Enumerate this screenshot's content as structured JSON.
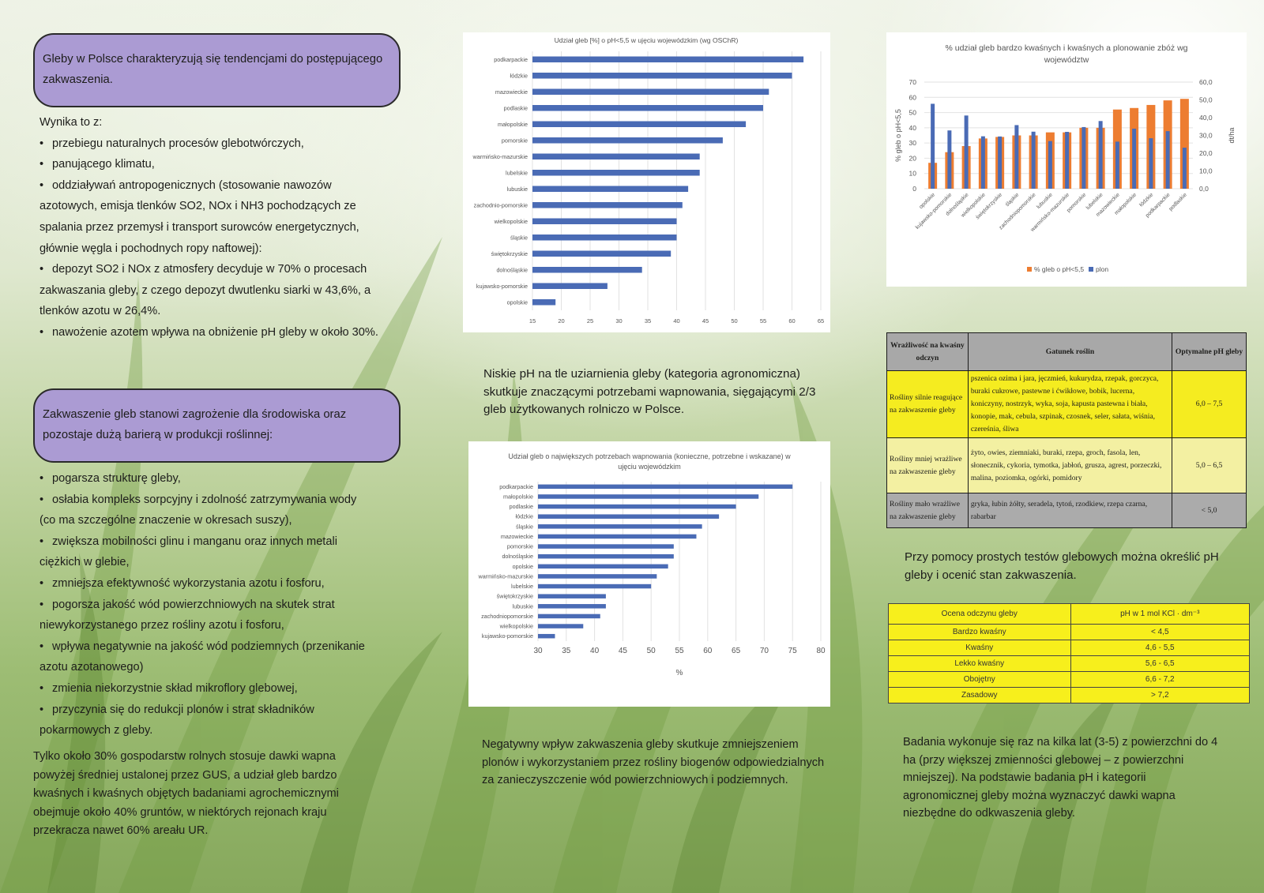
{
  "left": {
    "box1_text": "Gleby w Polsce charakteryzują się tendencjami do postępującego zakwaszenia.",
    "intro": "Wynika to z:",
    "causes": [
      "przebiegu naturalnych procesów glebotwórczych,",
      "panującego klimatu,",
      "oddziaływań antropogenicznych (stosowanie nawozów azotowych, emisja tlenków SO2, NOx i NH3 pochodzących ze spalania przez przemysł i transport surowców energetycznych, głównie węgla i pochodnych ropy naftowej):",
      "depozyt SO2 i NOx z atmosfery decyduje w 70% o procesach zakwaszania gleby, z czego depozyt dwutlenku siarki w 43,6%, a tlenków azotu w 26,4%.",
      "nawożenie azotem wpływa na obniżenie pH gleby w około 30%."
    ],
    "box2_text": "Zakwaszenie gleb stanowi zagrożenie dla środowiska oraz pozostaje dużą barierą w produkcji roślinnej:",
    "effects": [
      "pogarsza strukturę gleby,",
      "osłabia kompleks sorpcyjny i zdolność zatrzymywania wody (co ma szczególne znaczenie w okresach suszy),",
      "zwiększa mobilności glinu i manganu oraz innych metali ciężkich w glebie,",
      "zmniejsza efektywność wykorzystania azotu i fosforu,",
      "pogorsza jakość wód powierzchniowych na skutek strat niewykorzystanego przez rośliny azotu i fosforu,",
      "wpływa negatywnie na jakość wód podziemnych (przenikanie azotu azotanowego)",
      "zmienia niekorzystnie skład mikroflory glebowej,",
      "przyczynia się do redukcji plonów i strat składników pokarmowych z gleby."
    ],
    "closing": "Tylko około 30% gospodarstw rolnych stosuje dawki wapna powyżej średniej ustalonej przez GUS, a udział gleb bardzo kwaśnych i kwaśnych objętych badaniami agrochemicznymi obejmuje około 40% gruntów, w niektórych rejonach kraju przekracza nawet 60% areału UR."
  },
  "middle": {
    "text1": "Niskie pH na tle uziarnienia gleby (kategoria agronomiczna) skutkuje znaczącymi potrzebami wapnowania, sięgającymi 2/3 gleb użytkowanych rolniczo w Polsce.",
    "text2": "Negatywny wpływ zakwaszenia gleby skutkuje zmniejszeniem plonów i wykorzystaniem przez rośliny biogenów odpowiedzialnych za zanieczyszczenie wód powierzchniowych i podziemnych."
  },
  "right": {
    "sens_table": {
      "headers": [
        "Wrażliwość na kwaśny odczyn",
        "Gatunek roślin",
        "Optymalne pH gleby"
      ],
      "rows": [
        {
          "group": "Rośliny silnie reagujące na zakwaszenie gleby",
          "species": "pszenica ozima i jara, jęczmień, kukurydza, rzepak, gorczyca, buraki cukrowe, pastewne i ćwikłowe, bobik, lucerna, koniczyny, nostrzyk, wyka, soja, kapusta pastewna i biała, konopie, mak, cebula, szpinak, czosnek, seler, sałata, wiśnia, czereśnia, śliwa",
          "ph": "6,0 – 7,5",
          "color": "#f5ec20"
        },
        {
          "group": "Rośliny mniej wrażliwe na zakwaszenie gleby",
          "species": "żyto, owies, ziemniaki, buraki, rzepa, groch, fasola, len, słonecznik, cykoria, tymotka, jabłoń, grusza, agrest, porzeczki, malina, poziomka, ogórki, pomidory",
          "ph": "5,0 – 6,5",
          "color": "#f3f0a2"
        },
        {
          "group": "Rośliny mało wrażliwe na zakwaszenie gleby",
          "species": "gryka, łubin żółty, seradela, tytoń, rzodkiew, rzepa czarna, rabarbar",
          "ph": "< 5,0",
          "color": "#ababab"
        }
      ]
    },
    "text1": "Przy pomocy prostych testów glebowych można określić pH gleby i ocenić stan zakwaszenia.",
    "ph_table": {
      "header_left": "Ocena odczynu gleby",
      "header_right": "pH w 1 mol KCl · dm⁻³",
      "rows": [
        {
          "label": "Bardzo kwaśny",
          "value": "< 4,5"
        },
        {
          "label": "Kwaśny",
          "value": "4,6 - 5,5"
        },
        {
          "label": "Lekko kwaśny",
          "value": "5,6 - 6,5"
        },
        {
          "label": "Obojętny",
          "value": "6,6 - 7,2"
        },
        {
          "label": "Zasadowy",
          "value": "> 7,2"
        }
      ]
    },
    "text2": "Badania wykonuje się raz na kilka lat (3-5) z powierzchni do 4 ha (przy większej zmienności glebowej – z powierzchni mniejszej). Na podstawie badania pH i kategorii agronomicznej gleby można wyznaczyć dawki wapna niezbędne do odkwaszenia gleby."
  },
  "chart_data": [
    {
      "type": "bar",
      "orientation": "horizontal",
      "title": "Udział gleb [%] o pH<5,5 w ujęciu wojewódzkim (wg OSChR)",
      "categories": [
        "podkarpackie",
        "łódzkie",
        "mazowieckie",
        "podlaskie",
        "małopolskie",
        "pomorskie",
        "warmińsko-mazurskie",
        "lubelskie",
        "lubuskie",
        "zachodnio-pomorskie",
        "wielkopolskie",
        "śląskie",
        "świętokrzyskie",
        "dolnośląskie",
        "kujawsko-pomorskie",
        "opolskie"
      ],
      "values": [
        62,
        60,
        56,
        55,
        52,
        48,
        44,
        44,
        42,
        41,
        40,
        40,
        39,
        34,
        28,
        19
      ],
      "xlim": [
        15,
        65
      ],
      "xticks": [
        "15",
        "20",
        "25",
        "30",
        "35",
        "40",
        "45",
        "50",
        "55",
        "60",
        "65"
      ],
      "bar_color": "#4a6bb5",
      "grid": true
    },
    {
      "type": "bar",
      "orientation": "horizontal",
      "title": "Udział gleb o największych potrzebach wapnowania (konieczne, potrzebne i wskazane) w ujęciu wojewódzkim",
      "categories": [
        "podkarpackie",
        "małopolskie",
        "podlaskie",
        "łódzkie",
        "śląskie",
        "mazowieckie",
        "pomorskie",
        "dolnośląskie",
        "opolskie",
        "warmińsko-mazurskie",
        "lubelskie",
        "świętokrzyskie",
        "lubuskie",
        "zachodniopomorskie",
        "wielkopolskie",
        "kujawsko-pomorskie"
      ],
      "values": [
        75,
        69,
        65,
        62,
        59,
        58,
        54,
        54,
        53,
        51,
        50,
        42,
        42,
        41,
        38,
        33
      ],
      "xlim": [
        30,
        80
      ],
      "xticks": [
        "30",
        "35",
        "40",
        "45",
        "50",
        "55",
        "60",
        "65",
        "70",
        "75",
        "80"
      ],
      "xlabel": "%",
      "bar_color": "#4a6bb5",
      "grid": true
    },
    {
      "type": "bar",
      "title": "% udział gleb bardzo kwaśnych i kwaśnych a plonowanie zbóż wg województw",
      "categories": [
        "opolskie",
        "kujawsko-pomorskie",
        "dolnośląskie",
        "wielkopolskie",
        "świętokrzyskie",
        "śląskie",
        "zachodniopomorskie",
        "lubuskie",
        "warmińsko-mazurskie",
        "pomorskie",
        "lubelskie",
        "mazowieckie",
        "małopolskie",
        "łódzkie",
        "podkarpackie",
        "podlaskie"
      ],
      "series": [
        {
          "name": "% gleb o pH<5,5",
          "axis": "left",
          "color": "#ed7d31",
          "values": [
            17,
            24,
            28,
            33,
            34,
            35,
            35,
            37,
            37,
            40,
            40,
            52,
            53,
            55,
            58,
            59
          ]
        },
        {
          "name": "plon",
          "axis": "right",
          "color": "#4a6bb5",
          "values": [
            47.8,
            32.8,
            41.2,
            29.5,
            29.4,
            35.8,
            32.1,
            26.8,
            32.0,
            34.7,
            38.1,
            26.5,
            33.8,
            28.4,
            32.4,
            23.1
          ]
        }
      ],
      "ylabel": "% gleb o pH<5,5",
      "ylabel_right": "dt/ha",
      "ylim": [
        0,
        70
      ],
      "yticks": [
        "0",
        "10",
        "20",
        "30",
        "40",
        "50",
        "60",
        "70"
      ],
      "ylim_right": [
        0,
        60
      ],
      "yticks_right": [
        "0,0",
        "10,0",
        "20,0",
        "30,0",
        "40,0",
        "50,0",
        "60,0"
      ],
      "legend": "bottom",
      "grid": true
    }
  ]
}
